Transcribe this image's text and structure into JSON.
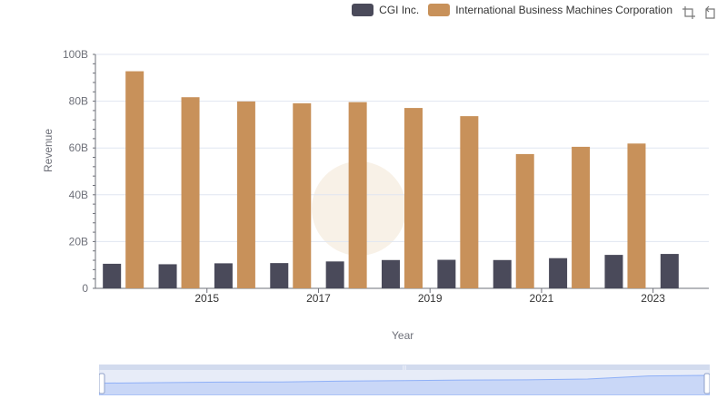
{
  "chart_data": {
    "type": "bar",
    "xlabel": "Year",
    "ylabel": "Revenue",
    "ylim": [
      0,
      100
    ],
    "y_ticks": [
      "0",
      "20B",
      "40B",
      "60B",
      "80B",
      "100B"
    ],
    "x": [
      "2014",
      "2015",
      "2016",
      "2017",
      "2018",
      "2019",
      "2020",
      "2021",
      "2022",
      "2023",
      "2024"
    ],
    "x_tick_labels": [
      "2015",
      "2017",
      "2019",
      "2021",
      "2023"
    ],
    "series": [
      {
        "name": "CGI Inc.",
        "color": "#4a4a5a",
        "values": [
          10.5,
          10.3,
          10.7,
          10.8,
          11.5,
          12.1,
          12.2,
          12.1,
          12.9,
          14.3,
          14.7
        ]
      },
      {
        "name": "International Business Machines Corporation",
        "color": "#c8915a",
        "values": [
          92.8,
          81.7,
          79.9,
          79.1,
          79.6,
          77.1,
          73.6,
          57.4,
          60.5,
          61.9,
          null
        ]
      }
    ],
    "grid": true,
    "legend_position": "top-right"
  },
  "toolbox": {
    "zoom_icon": "zoom-icon",
    "restore_icon": "restore-icon"
  },
  "slider": {
    "series_trend": [
      10,
      10.5,
      11,
      11.2,
      12,
      12.5,
      13,
      13.2,
      14,
      17,
      17.5
    ]
  }
}
